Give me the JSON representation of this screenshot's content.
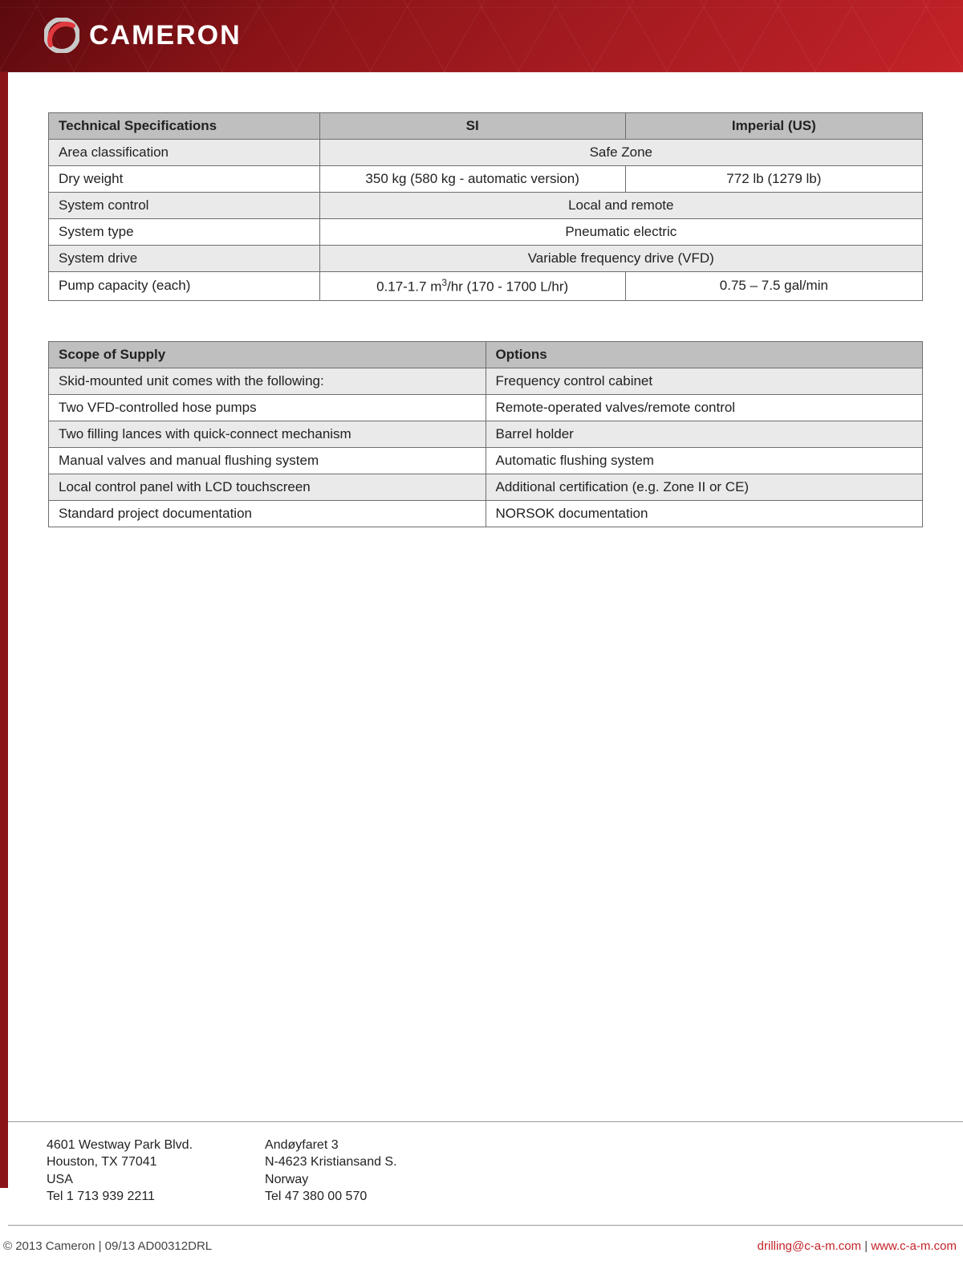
{
  "brand": {
    "name": "CAMERON"
  },
  "colors": {
    "header_gradient": [
      "#5a0a0e",
      "#8b1418",
      "#a31b20",
      "#c32228"
    ],
    "sidebar": "#8b1418",
    "th_bg": "#bfbfc0",
    "row_alt_bg": "#eaeaea",
    "row_bg": "#ffffff",
    "border": "#6e6e6e",
    "text": "#222222",
    "accent_red": "#c32228"
  },
  "table1": {
    "headers": {
      "spec": "Technical Specifications",
      "si": "SI",
      "imp": "Imperial (US)"
    },
    "col_widths": [
      "31%",
      "35%",
      "34%"
    ],
    "rows": [
      {
        "alt": true,
        "label": "Area classification",
        "merged": "Safe Zone"
      },
      {
        "alt": false,
        "label": "Dry weight",
        "si": "350 kg (580 kg - automatic version)",
        "imp": "772 lb (1279 lb)"
      },
      {
        "alt": true,
        "label": "System control",
        "merged": "Local and remote"
      },
      {
        "alt": false,
        "label": "System type",
        "merged": "Pneumatic electric"
      },
      {
        "alt": true,
        "label": "System drive",
        "merged": "Variable frequency drive (VFD)"
      },
      {
        "alt": false,
        "label": "Pump capacity (each)",
        "si_html": "0.17-1.7 m<sup>3</sup>/hr (170 - 1700 L/hr)",
        "imp": "0.75 – 7.5 gal/min"
      }
    ]
  },
  "table2": {
    "headers": {
      "scope": "Scope of Supply",
      "options": "Options"
    },
    "col_widths": [
      "50%",
      "50%"
    ],
    "rows": [
      {
        "alt": true,
        "scope": "Skid-mounted unit comes with the following:",
        "options": "Frequency control cabinet"
      },
      {
        "alt": false,
        "scope": "Two VFD-controlled hose pumps",
        "options": "Remote-operated valves/remote control"
      },
      {
        "alt": true,
        "scope": "Two filling lances with quick-connect mechanism",
        "options": "Barrel holder"
      },
      {
        "alt": false,
        "scope": "Manual valves and manual flushing system",
        "options": "Automatic flushing system"
      },
      {
        "alt": true,
        "scope": "Local control panel with LCD touchscreen",
        "options": "Additional certification (e.g. Zone II or CE)"
      },
      {
        "alt": false,
        "scope": "Standard project documentation",
        "options": "NORSOK documentation"
      }
    ]
  },
  "addresses": {
    "us": [
      "4601 Westway Park Blvd.",
      "Houston, TX 77041",
      "USA",
      "Tel 1 713 939 2211"
    ],
    "no": [
      "Andøyfaret 3",
      "N-4623 Kristiansand S.",
      "Norway",
      "Tel 47 380 00 570"
    ]
  },
  "footer": {
    "copyright": "© 2013 Cameron | 09/13 AD00312DRL",
    "email": "drilling@c-a-m.com",
    "sep": " | ",
    "url": "www.c-a-m.com"
  }
}
